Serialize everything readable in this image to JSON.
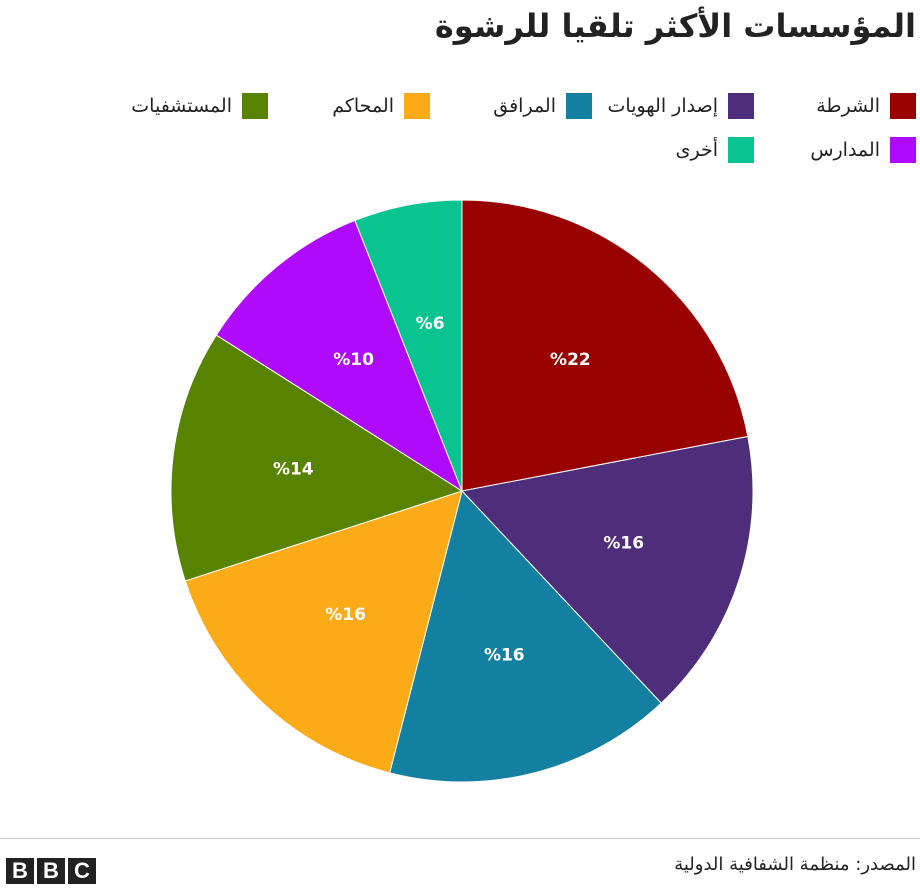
{
  "title": "المؤسسات الأكثر تلقيا للرشوة",
  "source": "المصدر: منظمة الشفافية الدولية",
  "logo": {
    "letters": [
      "B",
      "B",
      "C"
    ]
  },
  "legend": [
    {
      "label": "الشرطة",
      "color": "#990000"
    },
    {
      "label": "إصدار الهويات",
      "color": "#4e2d7a"
    },
    {
      "label": "المرافق",
      "color": "#1380a1"
    },
    {
      "label": "المحاكم",
      "color": "#fbab18"
    },
    {
      "label": "المستشفيات",
      "color": "#588300"
    },
    {
      "label": "المدارس",
      "color": "#af0af9"
    },
    {
      "label": "أخرى",
      "color": "#09c391"
    }
  ],
  "chart_data": {
    "type": "pie",
    "title": "المؤسسات الأكثر تلقيا للرشوة",
    "legend_position": "top",
    "start": "12 o'clock",
    "direction": "clockwise",
    "slices": [
      {
        "label": "الشرطة",
        "value": 22,
        "display": "%22",
        "color": "#990000"
      },
      {
        "label": "إصدار الهويات",
        "value": 16,
        "display": "%16",
        "color": "#4e2d7a"
      },
      {
        "label": "المرافق",
        "value": 16,
        "display": "%16",
        "color": "#1380a1"
      },
      {
        "label": "المحاكم",
        "value": 16,
        "display": "%16",
        "color": "#fbab18"
      },
      {
        "label": "المستشفيات",
        "value": 14,
        "display": "%14",
        "color": "#588300"
      },
      {
        "label": "المدارس",
        "value": 10,
        "display": "%10",
        "color": "#af0af9"
      },
      {
        "label": "أخرى",
        "value": 6,
        "display": "%6",
        "color": "#09c391"
      }
    ]
  }
}
